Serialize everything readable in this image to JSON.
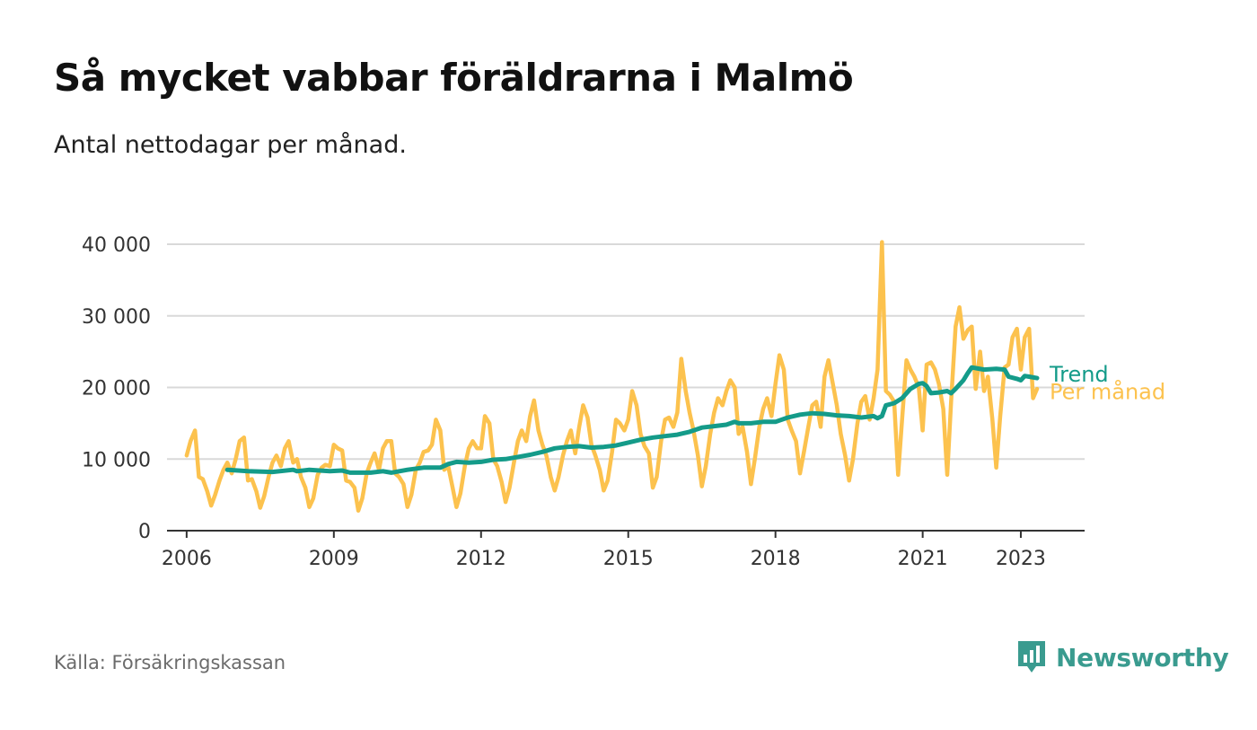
{
  "title": "Så mycket vabbar föräldrarna i Malmö",
  "subtitle": "Antal nettodagar per månad.",
  "source": "Källa: Försäkringskassan",
  "brand": "Newsworthy",
  "colors": {
    "monthly": "#fcc24e",
    "trend": "#149b89",
    "grid": "#d9d9d9",
    "axis": "#333333",
    "brand": "#3a9b8f"
  },
  "chart_data": {
    "type": "line",
    "title": "Så mycket vabbar föräldrarna i Malmö",
    "subtitle": "Antal nettodagar per månad.",
    "xlabel": "",
    "ylabel": "",
    "ylim": [
      0,
      40000
    ],
    "xlim": [
      2005.6,
      2024.3
    ],
    "y_ticks": [
      0,
      10000,
      20000,
      30000,
      40000
    ],
    "y_tick_labels": [
      "0",
      "10 000",
      "20 000",
      "30 000",
      "40 000"
    ],
    "x_ticks": [
      2006,
      2009,
      2012,
      2015,
      2018,
      2021,
      2023
    ],
    "x_tick_labels": [
      "2006",
      "2009",
      "2012",
      "2015",
      "2018",
      "2021",
      "2023"
    ],
    "grid": true,
    "legend": "inline-right",
    "series": [
      {
        "name": "Per månad",
        "color": "#fcc24e",
        "points": [
          [
            2006.0,
            10500
          ],
          [
            2006.08,
            12500
          ],
          [
            2006.17,
            14000
          ],
          [
            2006.25,
            7500
          ],
          [
            2006.33,
            7200
          ],
          [
            2006.42,
            5500
          ],
          [
            2006.5,
            3500
          ],
          [
            2006.58,
            5000
          ],
          [
            2006.67,
            7000
          ],
          [
            2006.75,
            8500
          ],
          [
            2006.83,
            9500
          ],
          [
            2006.92,
            8000
          ],
          [
            2007.0,
            10000
          ],
          [
            2007.08,
            12500
          ],
          [
            2007.17,
            13000
          ],
          [
            2007.25,
            7000
          ],
          [
            2007.33,
            7200
          ],
          [
            2007.42,
            5500
          ],
          [
            2007.5,
            3200
          ],
          [
            2007.58,
            4800
          ],
          [
            2007.67,
            7500
          ],
          [
            2007.75,
            9500
          ],
          [
            2007.83,
            10500
          ],
          [
            2007.92,
            9000
          ],
          [
            2008.0,
            11500
          ],
          [
            2008.08,
            12500
          ],
          [
            2008.17,
            9500
          ],
          [
            2008.25,
            10000
          ],
          [
            2008.33,
            7500
          ],
          [
            2008.42,
            6000
          ],
          [
            2008.5,
            3300
          ],
          [
            2008.58,
            4500
          ],
          [
            2008.67,
            7800
          ],
          [
            2008.75,
            8800
          ],
          [
            2008.83,
            9200
          ],
          [
            2008.92,
            9000
          ],
          [
            2009.0,
            12000
          ],
          [
            2009.08,
            11500
          ],
          [
            2009.17,
            11200
          ],
          [
            2009.25,
            7000
          ],
          [
            2009.33,
            6800
          ],
          [
            2009.42,
            6000
          ],
          [
            2009.5,
            2800
          ],
          [
            2009.58,
            4500
          ],
          [
            2009.67,
            8000
          ],
          [
            2009.75,
            9500
          ],
          [
            2009.83,
            10800
          ],
          [
            2009.92,
            8500
          ],
          [
            2010.0,
            11500
          ],
          [
            2010.08,
            12500
          ],
          [
            2010.17,
            12500
          ],
          [
            2010.25,
            8000
          ],
          [
            2010.33,
            7500
          ],
          [
            2010.42,
            6500
          ],
          [
            2010.5,
            3300
          ],
          [
            2010.58,
            5000
          ],
          [
            2010.67,
            8500
          ],
          [
            2010.75,
            9500
          ],
          [
            2010.83,
            11000
          ],
          [
            2010.92,
            11200
          ],
          [
            2011.0,
            12000
          ],
          [
            2011.08,
            15500
          ],
          [
            2011.17,
            14000
          ],
          [
            2011.25,
            8500
          ],
          [
            2011.33,
            9000
          ],
          [
            2011.42,
            6000
          ],
          [
            2011.5,
            3300
          ],
          [
            2011.58,
            5200
          ],
          [
            2011.67,
            9000
          ],
          [
            2011.75,
            11500
          ],
          [
            2011.83,
            12500
          ],
          [
            2011.92,
            11500
          ],
          [
            2012.0,
            11500
          ],
          [
            2012.08,
            16000
          ],
          [
            2012.17,
            15000
          ],
          [
            2012.25,
            10000
          ],
          [
            2012.33,
            9000
          ],
          [
            2012.42,
            6800
          ],
          [
            2012.5,
            4000
          ],
          [
            2012.58,
            6000
          ],
          [
            2012.67,
            9500
          ],
          [
            2012.75,
            12500
          ],
          [
            2012.83,
            14000
          ],
          [
            2012.92,
            12500
          ],
          [
            2013.0,
            16000
          ],
          [
            2013.08,
            18200
          ],
          [
            2013.17,
            14000
          ],
          [
            2013.25,
            12000
          ],
          [
            2013.33,
            10500
          ],
          [
            2013.42,
            7500
          ],
          [
            2013.5,
            5600
          ],
          [
            2013.58,
            7500
          ],
          [
            2013.67,
            10500
          ],
          [
            2013.75,
            12500
          ],
          [
            2013.83,
            14000
          ],
          [
            2013.92,
            10800
          ],
          [
            2014.0,
            14500
          ],
          [
            2014.08,
            17500
          ],
          [
            2014.17,
            15800
          ],
          [
            2014.25,
            12000
          ],
          [
            2014.33,
            10500
          ],
          [
            2014.42,
            8500
          ],
          [
            2014.5,
            5600
          ],
          [
            2014.58,
            7000
          ],
          [
            2014.67,
            11000
          ],
          [
            2014.75,
            15500
          ],
          [
            2014.83,
            15000
          ],
          [
            2014.92,
            14000
          ],
          [
            2015.0,
            15500
          ],
          [
            2015.08,
            19500
          ],
          [
            2015.17,
            17500
          ],
          [
            2015.25,
            13500
          ],
          [
            2015.33,
            11800
          ],
          [
            2015.42,
            10800
          ],
          [
            2015.5,
            6000
          ],
          [
            2015.58,
            7500
          ],
          [
            2015.67,
            12500
          ],
          [
            2015.75,
            15500
          ],
          [
            2015.83,
            15800
          ],
          [
            2015.92,
            14500
          ],
          [
            2016.0,
            16500
          ],
          [
            2016.08,
            24000
          ],
          [
            2016.17,
            19500
          ],
          [
            2016.25,
            16500
          ],
          [
            2016.33,
            14000
          ],
          [
            2016.42,
            10500
          ],
          [
            2016.5,
            6200
          ],
          [
            2016.58,
            9000
          ],
          [
            2016.67,
            13500
          ],
          [
            2016.75,
            16500
          ],
          [
            2016.83,
            18500
          ],
          [
            2016.92,
            17500
          ],
          [
            2017.0,
            19500
          ],
          [
            2017.08,
            21000
          ],
          [
            2017.17,
            20000
          ],
          [
            2017.25,
            13500
          ],
          [
            2017.33,
            14500
          ],
          [
            2017.42,
            11000
          ],
          [
            2017.5,
            6500
          ],
          [
            2017.58,
            10000
          ],
          [
            2017.67,
            14500
          ],
          [
            2017.75,
            17000
          ],
          [
            2017.83,
            18500
          ],
          [
            2017.92,
            16000
          ],
          [
            2018.0,
            20500
          ],
          [
            2018.08,
            24500
          ],
          [
            2018.17,
            22500
          ],
          [
            2018.25,
            15500
          ],
          [
            2018.33,
            14000
          ],
          [
            2018.42,
            12500
          ],
          [
            2018.5,
            8000
          ],
          [
            2018.58,
            11000
          ],
          [
            2018.67,
            14500
          ],
          [
            2018.75,
            17500
          ],
          [
            2018.83,
            18000
          ],
          [
            2018.92,
            14500
          ],
          [
            2019.0,
            21500
          ],
          [
            2019.08,
            23800
          ],
          [
            2019.17,
            20500
          ],
          [
            2019.25,
            17500
          ],
          [
            2019.33,
            13500
          ],
          [
            2019.42,
            10500
          ],
          [
            2019.5,
            7000
          ],
          [
            2019.58,
            10000
          ],
          [
            2019.67,
            15000
          ],
          [
            2019.75,
            18000
          ],
          [
            2019.83,
            18800
          ],
          [
            2019.92,
            15500
          ],
          [
            2020.0,
            18500
          ],
          [
            2020.08,
            22500
          ],
          [
            2020.17,
            40300
          ],
          [
            2020.25,
            19500
          ],
          [
            2020.33,
            19000
          ],
          [
            2020.42,
            18000
          ],
          [
            2020.5,
            7800
          ],
          [
            2020.58,
            15500
          ],
          [
            2020.67,
            23800
          ],
          [
            2020.75,
            22500
          ],
          [
            2020.83,
            21500
          ],
          [
            2020.92,
            20000
          ],
          [
            2021.0,
            14000
          ],
          [
            2021.08,
            23200
          ],
          [
            2021.17,
            23500
          ],
          [
            2021.25,
            22500
          ],
          [
            2021.33,
            20500
          ],
          [
            2021.42,
            17000
          ],
          [
            2021.5,
            7800
          ],
          [
            2021.58,
            18000
          ],
          [
            2021.67,
            28500
          ],
          [
            2021.75,
            31200
          ],
          [
            2021.83,
            26800
          ],
          [
            2021.92,
            28000
          ],
          [
            2022.0,
            28500
          ],
          [
            2022.08,
            19800
          ],
          [
            2022.17,
            25000
          ],
          [
            2022.25,
            19500
          ],
          [
            2022.33,
            21500
          ],
          [
            2022.42,
            15500
          ],
          [
            2022.5,
            8800
          ],
          [
            2022.58,
            16000
          ],
          [
            2022.67,
            22800
          ],
          [
            2022.75,
            23200
          ],
          [
            2022.83,
            27000
          ],
          [
            2022.92,
            28200
          ],
          [
            2023.0,
            22500
          ],
          [
            2023.08,
            27000
          ],
          [
            2023.17,
            28200
          ],
          [
            2023.25,
            18500
          ],
          [
            2023.33,
            19800
          ]
        ]
      },
      {
        "name": "Trend",
        "color": "#149b89",
        "points": [
          [
            2006.83,
            8500
          ],
          [
            2007.25,
            8300
          ],
          [
            2007.75,
            8200
          ],
          [
            2008.17,
            8500
          ],
          [
            2008.25,
            8300
          ],
          [
            2008.5,
            8500
          ],
          [
            2008.92,
            8300
          ],
          [
            2009.17,
            8400
          ],
          [
            2009.33,
            8100
          ],
          [
            2009.75,
            8100
          ],
          [
            2010.0,
            8300
          ],
          [
            2010.17,
            8100
          ],
          [
            2010.5,
            8500
          ],
          [
            2010.83,
            8800
          ],
          [
            2011.17,
            8800
          ],
          [
            2011.33,
            9300
          ],
          [
            2011.5,
            9600
          ],
          [
            2011.75,
            9500
          ],
          [
            2012.0,
            9600
          ],
          [
            2012.25,
            9900
          ],
          [
            2012.5,
            10000
          ],
          [
            2012.75,
            10300
          ],
          [
            2013.0,
            10600
          ],
          [
            2013.25,
            11000
          ],
          [
            2013.5,
            11500
          ],
          [
            2013.75,
            11700
          ],
          [
            2014.0,
            11800
          ],
          [
            2014.25,
            11600
          ],
          [
            2014.5,
            11700
          ],
          [
            2014.75,
            11900
          ],
          [
            2015.0,
            12300
          ],
          [
            2015.25,
            12700
          ],
          [
            2015.5,
            13000
          ],
          [
            2015.75,
            13200
          ],
          [
            2016.0,
            13400
          ],
          [
            2016.25,
            13800
          ],
          [
            2016.5,
            14400
          ],
          [
            2016.75,
            14600
          ],
          [
            2017.0,
            14800
          ],
          [
            2017.17,
            15200
          ],
          [
            2017.25,
            15000
          ],
          [
            2017.5,
            15000
          ],
          [
            2017.75,
            15200
          ],
          [
            2018.0,
            15200
          ],
          [
            2018.25,
            15800
          ],
          [
            2018.5,
            16200
          ],
          [
            2018.75,
            16400
          ],
          [
            2019.0,
            16300
          ],
          [
            2019.25,
            16100
          ],
          [
            2019.5,
            16000
          ],
          [
            2019.75,
            15800
          ],
          [
            2020.0,
            16000
          ],
          [
            2020.08,
            15700
          ],
          [
            2020.17,
            16000
          ],
          [
            2020.25,
            17500
          ],
          [
            2020.42,
            17800
          ],
          [
            2020.58,
            18500
          ],
          [
            2020.75,
            19800
          ],
          [
            2020.92,
            20500
          ],
          [
            2021.0,
            20600
          ],
          [
            2021.08,
            20200
          ],
          [
            2021.17,
            19200
          ],
          [
            2021.33,
            19300
          ],
          [
            2021.5,
            19500
          ],
          [
            2021.58,
            19200
          ],
          [
            2021.67,
            19800
          ],
          [
            2021.83,
            21000
          ],
          [
            2021.92,
            22000
          ],
          [
            2022.0,
            22800
          ],
          [
            2022.25,
            22500
          ],
          [
            2022.5,
            22600
          ],
          [
            2022.67,
            22500
          ],
          [
            2022.75,
            21500
          ],
          [
            2022.92,
            21200
          ],
          [
            2023.0,
            21000
          ],
          [
            2023.08,
            21600
          ],
          [
            2023.17,
            21500
          ],
          [
            2023.33,
            21300
          ]
        ]
      }
    ]
  }
}
